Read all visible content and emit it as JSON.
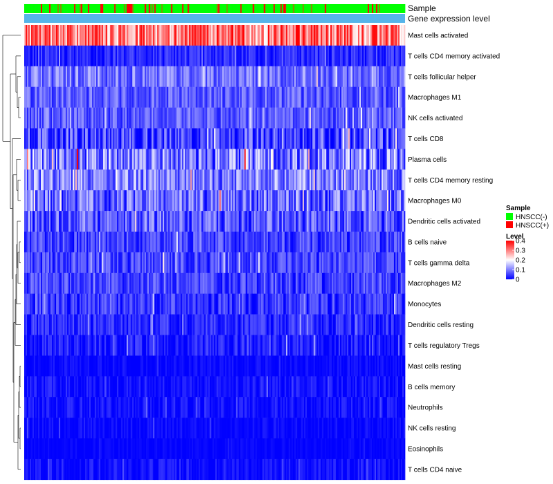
{
  "chart_data": {
    "type": "heatmap",
    "title": "",
    "annotation_rows": [
      {
        "label": "Sample"
      },
      {
        "label": "Gene expression level"
      }
    ],
    "rows": [
      {
        "label": "Mast cells activated",
        "mean": 0.3,
        "spread": 0.1
      },
      {
        "label": "T cells CD4 memory activated",
        "mean": 0.03,
        "spread": 0.04
      },
      {
        "label": "T cells follicular helper",
        "mean": 0.09,
        "spread": 0.06
      },
      {
        "label": "Macrophages M1",
        "mean": 0.07,
        "spread": 0.05
      },
      {
        "label": "NK cells activated",
        "mean": 0.07,
        "spread": 0.05
      },
      {
        "label": "T cells CD8",
        "mean": 0.05,
        "spread": 0.08
      },
      {
        "label": "Plasma cells",
        "mean": 0.1,
        "spread": 0.1
      },
      {
        "label": "T cells CD4 memory resting",
        "mean": 0.1,
        "spread": 0.08
      },
      {
        "label": "Macrophages M0",
        "mean": 0.08,
        "spread": 0.08
      },
      {
        "label": "Dendritic cells activated",
        "mean": 0.07,
        "spread": 0.07
      },
      {
        "label": "B cells naive",
        "mean": 0.05,
        "spread": 0.05
      },
      {
        "label": "T cells gamma delta",
        "mean": 0.05,
        "spread": 0.05
      },
      {
        "label": "Macrophages M2",
        "mean": 0.05,
        "spread": 0.05
      },
      {
        "label": "Monocytes",
        "mean": 0.04,
        "spread": 0.05
      },
      {
        "label": "Dendritic cells resting",
        "mean": 0.03,
        "spread": 0.04
      },
      {
        "label": "T cells regulatory  Tregs",
        "mean": 0.02,
        "spread": 0.04
      },
      {
        "label": "Mast cells resting",
        "mean": 0.005,
        "spread": 0.02
      },
      {
        "label": "B cells memory",
        "mean": 0.01,
        "spread": 0.03
      },
      {
        "label": "Neutrophils",
        "mean": 0.01,
        "spread": 0.03
      },
      {
        "label": "NK cells resting",
        "mean": 0.005,
        "spread": 0.02
      },
      {
        "label": "Eosinophils",
        "mean": 0.003,
        "spread": 0.01
      },
      {
        "label": "T cells CD4 naive",
        "mean": 0.01,
        "spread": 0.03
      }
    ],
    "n_samples": 275,
    "legend": {
      "sample": {
        "title": "Sample",
        "entries": [
          {
            "label": "HNSCC(-)",
            "color": "#00ff00"
          },
          {
            "label": "HNSCC(+)",
            "color": "#ff0000"
          }
        ]
      },
      "level": {
        "title": "Level",
        "ticks": [
          {
            "label": "0.4",
            "value": 0.4
          },
          {
            "label": "0.3",
            "value": 0.3
          },
          {
            "label": "0.2",
            "value": 0.2
          },
          {
            "label": "0.1",
            "value": 0.1
          },
          {
            "label": "0",
            "value": 0
          }
        ],
        "range": [
          0,
          0.4
        ],
        "colors": [
          "#0000ff",
          "#ffffff",
          "#ff0000"
        ]
      }
    },
    "annotation_colors": {
      "hnscc_neg": "#00ff00",
      "hnscc_pos": "#ff0000",
      "gene_level": "#56b4e9"
    }
  }
}
